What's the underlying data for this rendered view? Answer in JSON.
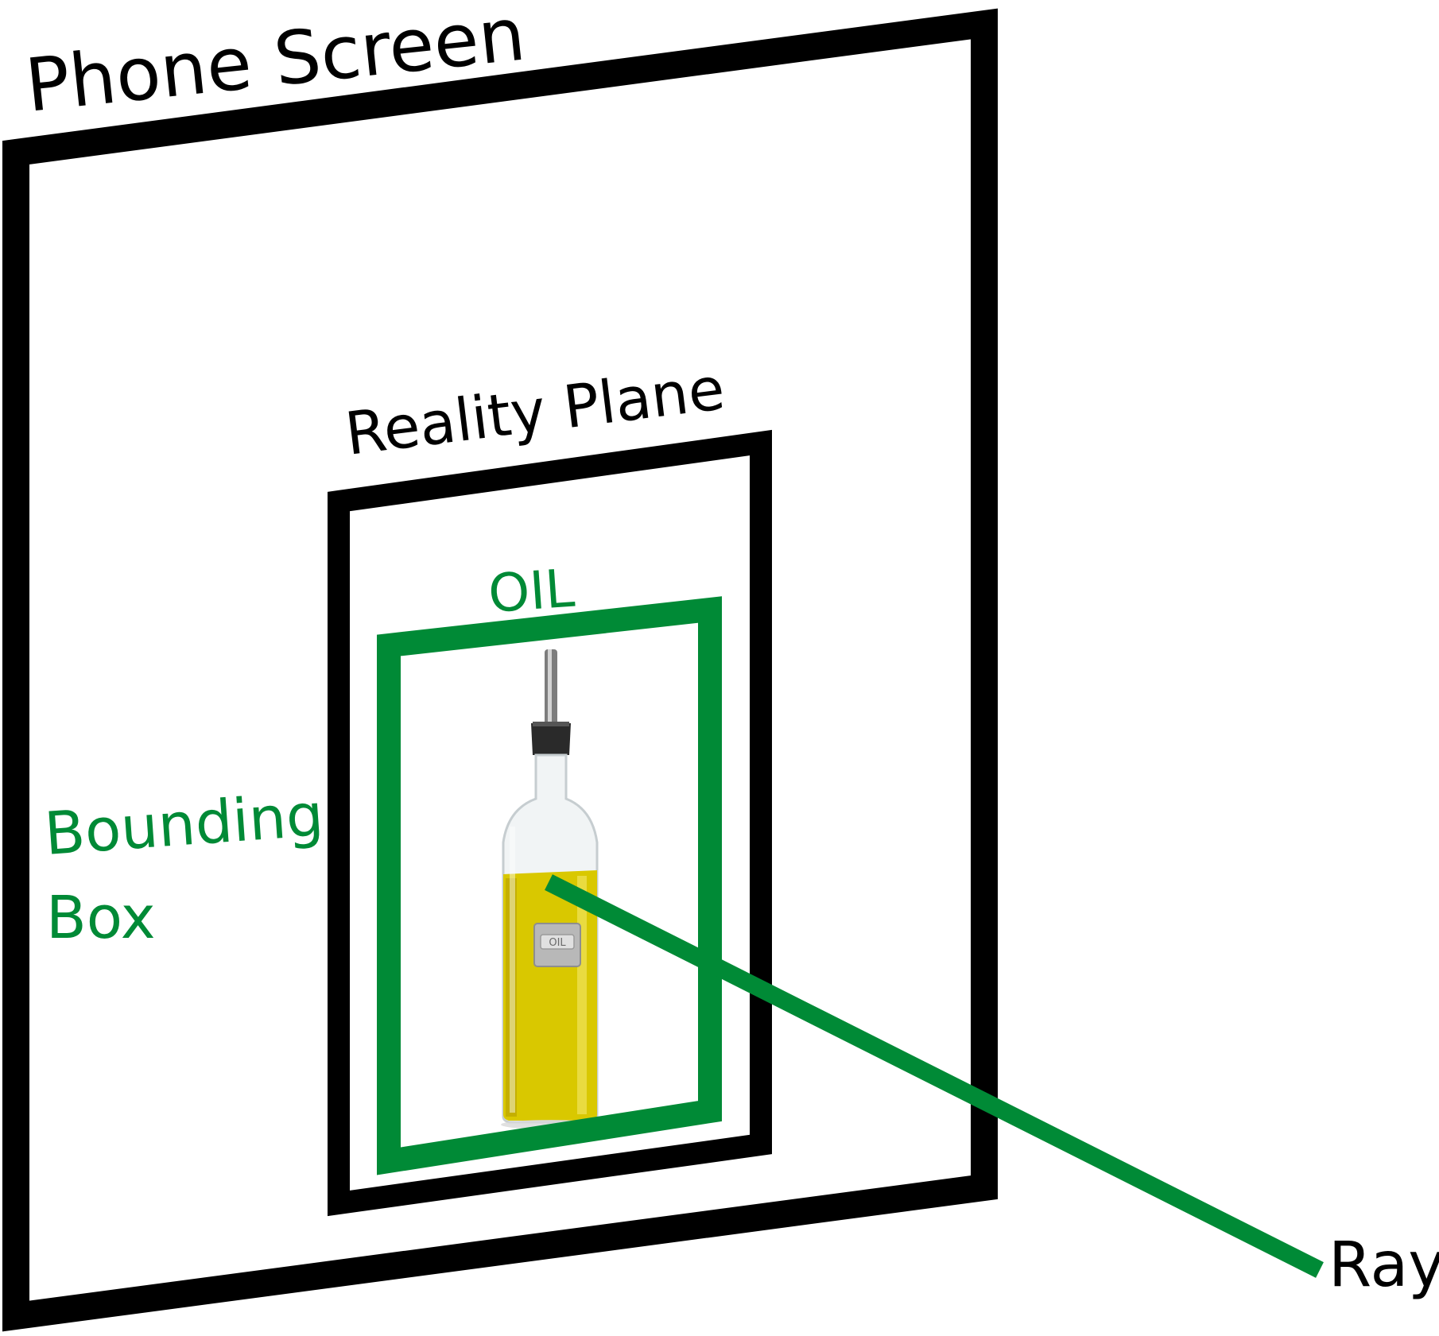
{
  "labels": {
    "phone_screen": "Phone Screen",
    "reality_plane": "Reality Plane",
    "object_label": "OIL",
    "bounding_box_line1": "Bounding",
    "bounding_box_line2": "Box",
    "ray": "Ray",
    "bottle_tag": "OIL"
  },
  "colors": {
    "frame": "#000000",
    "accent_green": "#008a36",
    "oil": "#d9c800",
    "oil_dark": "#b29b00",
    "glass": "#eef1f2",
    "tag": "#b8b8b8"
  },
  "icons": {
    "object": "oil-bottle-icon"
  }
}
